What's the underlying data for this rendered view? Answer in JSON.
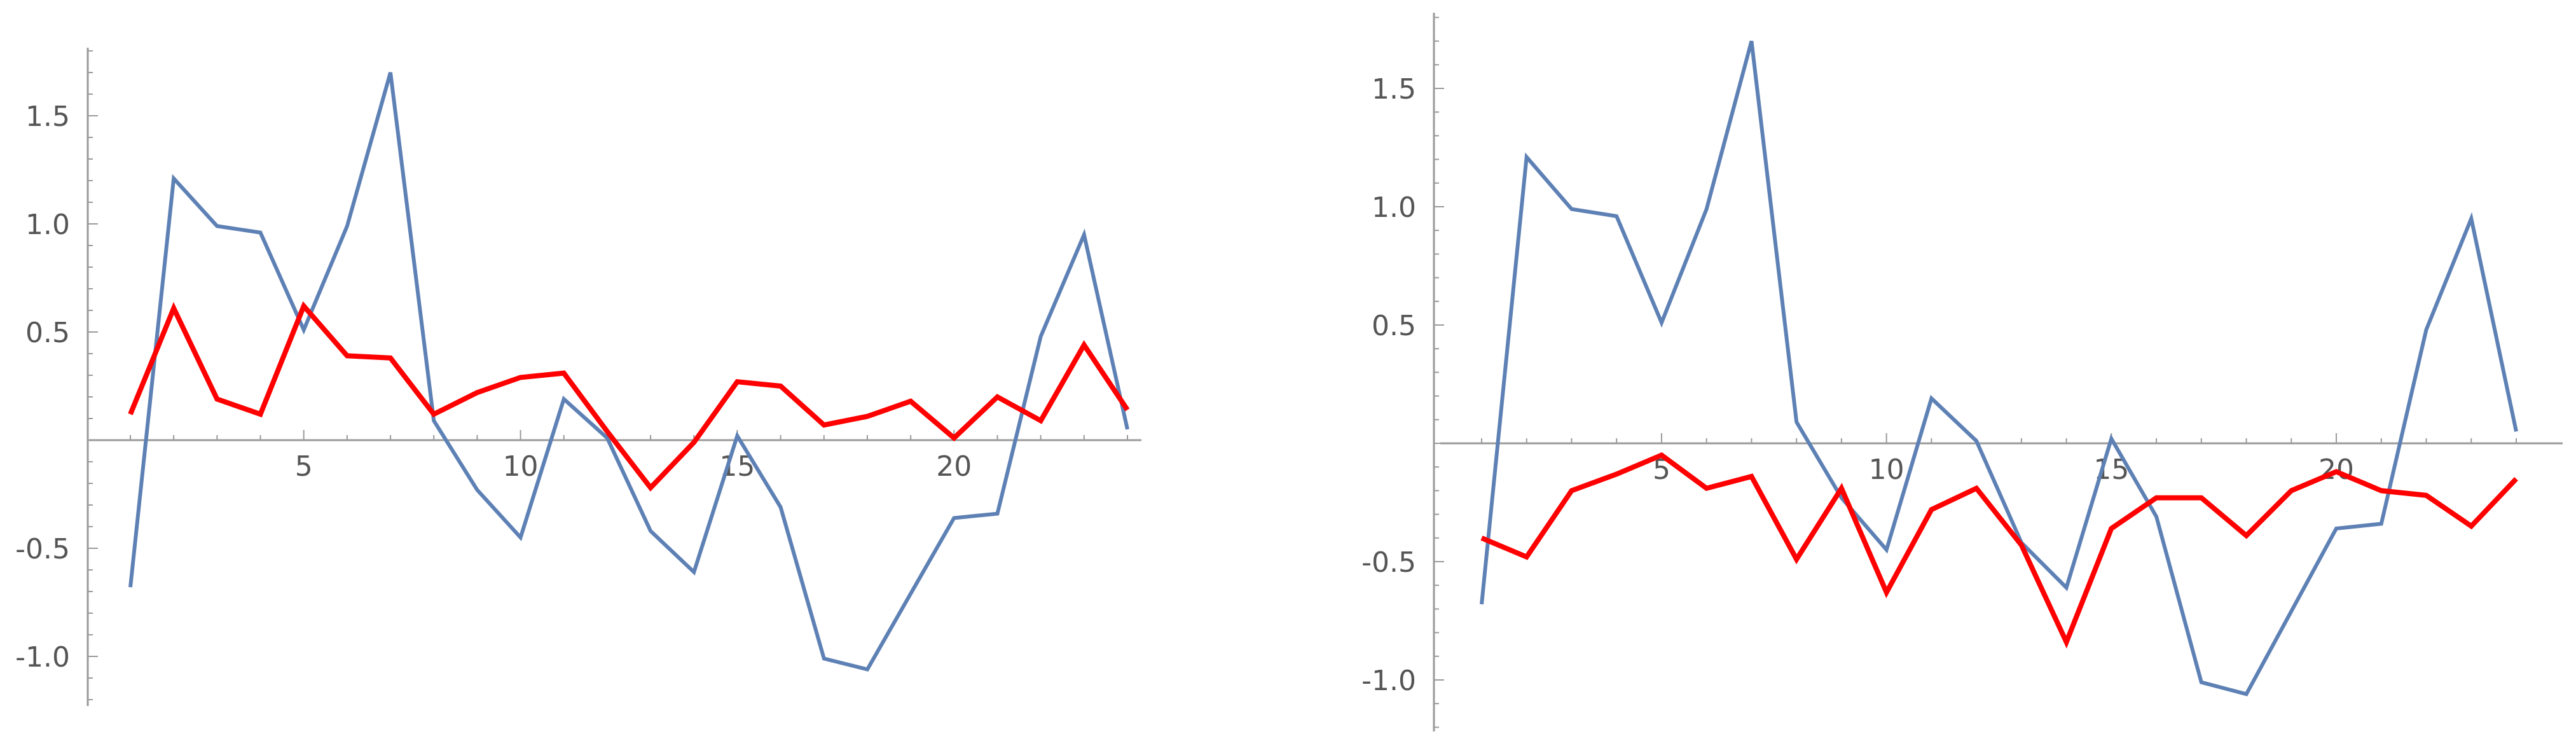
{
  "chart_data": [
    {
      "type": "line",
      "title": "",
      "xlabel": "",
      "ylabel": "",
      "xlim": [
        0.5,
        24.3
      ],
      "ylim": [
        -1.22,
        1.83
      ],
      "x_ticks": [
        5,
        10,
        15,
        20
      ],
      "y_ticks": [
        -1.0,
        -0.5,
        0.5,
        1.0,
        1.5
      ],
      "x_tick_labels": [
        "5",
        "10",
        "15",
        "20"
      ],
      "y_tick_labels": [
        "-1.0",
        "-0.5",
        "0.5",
        "1.0",
        "1.5"
      ],
      "grid": false,
      "series": [
        {
          "color": "#5e81b5",
          "x": [
            1,
            2,
            3,
            4,
            5,
            6,
            7,
            8,
            9,
            10,
            11,
            12,
            13,
            14,
            15,
            16,
            17,
            18,
            19,
            20,
            21,
            22,
            23,
            24
          ],
          "values": [
            -0.68,
            1.21,
            0.99,
            0.96,
            0.51,
            0.99,
            1.7,
            0.09,
            -0.23,
            -0.45,
            0.19,
            0.01,
            -0.42,
            -0.61,
            0.02,
            -0.31,
            -1.01,
            -1.06,
            -0.71,
            -0.36,
            -0.34,
            0.48,
            0.95,
            0.05
          ]
        },
        {
          "color": "#ff0000",
          "x": [
            1,
            2,
            3,
            4,
            5,
            6,
            7,
            8,
            9,
            10,
            11,
            12,
            13,
            14,
            15,
            16,
            17,
            18,
            19,
            20,
            21,
            22,
            23,
            24
          ],
          "values": [
            0.12,
            0.61,
            0.19,
            0.12,
            0.62,
            0.39,
            0.38,
            0.12,
            0.22,
            0.29,
            0.31,
            0.04,
            -0.22,
            -0.01,
            0.27,
            0.25,
            0.07,
            0.11,
            0.18,
            0.01,
            0.2,
            0.09,
            0.44,
            0.14
          ]
        }
      ]
    },
    {
      "type": "line",
      "title": "",
      "xlabel": "",
      "ylabel": "",
      "xlim": [
        0.5,
        24.3
      ],
      "ylim": [
        -1.22,
        1.83
      ],
      "x_ticks": [
        5,
        10,
        15,
        20
      ],
      "y_ticks": [
        -1.0,
        -0.5,
        0.5,
        1.0,
        1.5
      ],
      "x_tick_labels": [
        "5",
        "10",
        "15",
        "20"
      ],
      "y_tick_labels": [
        "-1.0",
        "-0.5",
        "0.5",
        "1.0",
        "1.5"
      ],
      "grid": false,
      "series": [
        {
          "color": "#5e81b5",
          "x": [
            1,
            2,
            3,
            4,
            5,
            6,
            7,
            8,
            9,
            10,
            11,
            12,
            13,
            14,
            15,
            16,
            17,
            18,
            19,
            20,
            21,
            22,
            23,
            24
          ],
          "values": [
            -0.68,
            1.21,
            0.99,
            0.96,
            0.51,
            0.99,
            1.7,
            0.09,
            -0.23,
            -0.45,
            0.19,
            0.01,
            -0.42,
            -0.61,
            0.02,
            -0.31,
            -1.01,
            -1.06,
            -0.71,
            -0.36,
            -0.34,
            0.48,
            0.95,
            0.05
          ]
        },
        {
          "color": "#ff0000",
          "x": [
            1,
            2,
            3,
            4,
            5,
            6,
            7,
            8,
            9,
            10,
            11,
            12,
            13,
            14,
            15,
            16,
            17,
            18,
            19,
            20,
            21,
            22,
            23,
            24
          ],
          "values": [
            -0.4,
            -0.48,
            -0.2,
            -0.13,
            -0.05,
            -0.19,
            -0.14,
            -0.49,
            -0.19,
            -0.63,
            -0.28,
            -0.19,
            -0.43,
            -0.84,
            -0.36,
            -0.23,
            -0.23,
            -0.39,
            -0.2,
            -0.12,
            -0.2,
            -0.22,
            -0.35,
            -0.15
          ]
        }
      ]
    }
  ]
}
